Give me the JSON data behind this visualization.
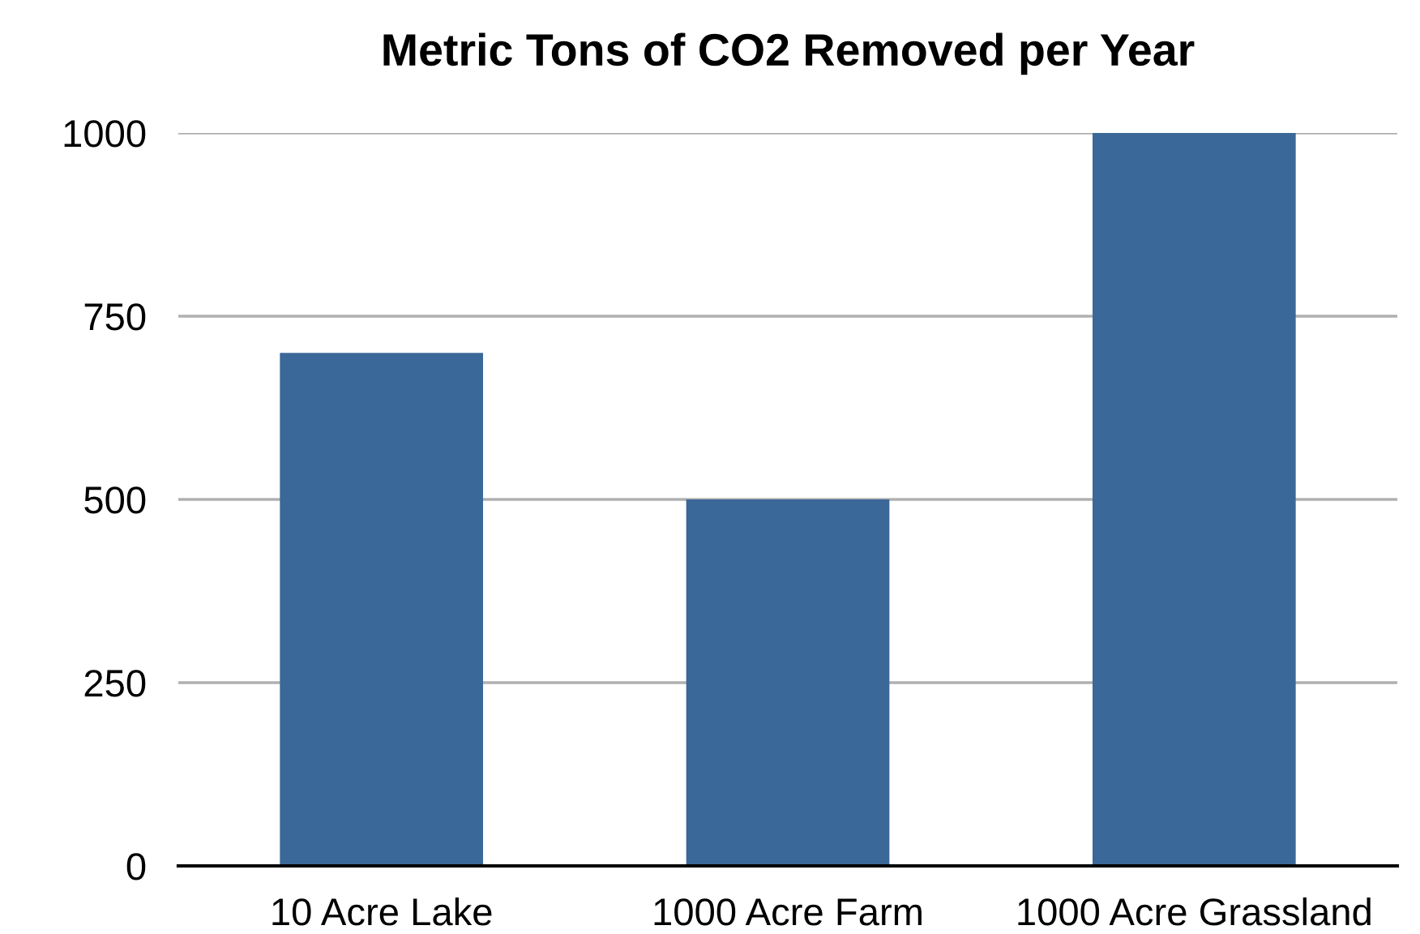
{
  "chart_data": {
    "type": "bar",
    "title": "Metric Tons of CO2 Removed per Year",
    "categories": [
      "10 Acre Lake",
      "1000 Acre Farm",
      "1000 Acre Grassland"
    ],
    "values": [
      700,
      500,
      1000
    ],
    "color": "#3a6898",
    "ylim": [
      0,
      1000
    ],
    "yticks": [
      0,
      250,
      500,
      750,
      1000
    ],
    "grid": "y"
  }
}
